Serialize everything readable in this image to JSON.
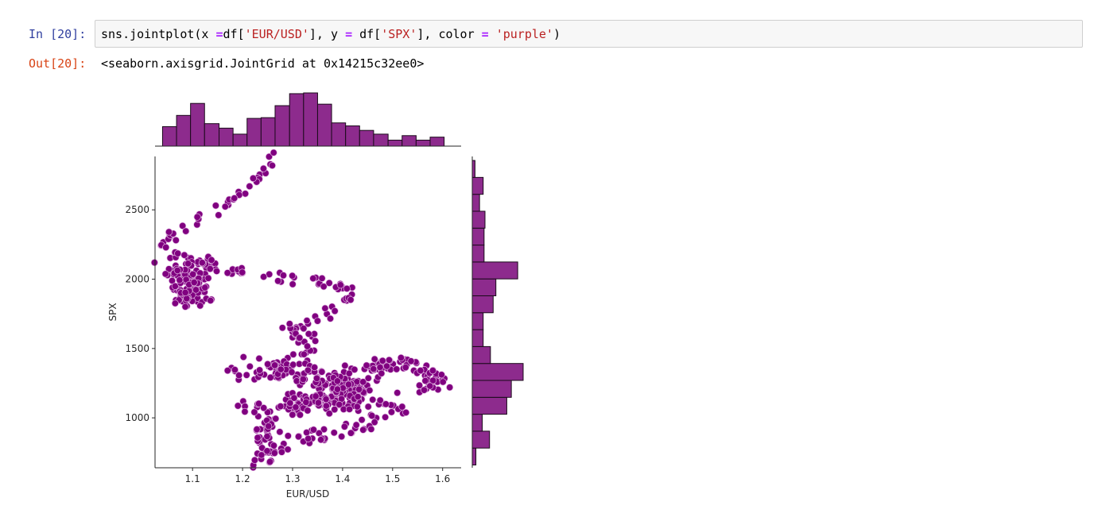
{
  "cell": {
    "in_prompt": "In [20]:",
    "out_prompt": "Out[20]:",
    "code": {
      "fn": "sns.jointplot(x ",
      "eq1": "=",
      "x_df": "df[",
      "x_key": "'EUR/USD'",
      "x_close": "], y ",
      "eq2": "=",
      "y_df": " df[",
      "y_key": "'SPX'",
      "y_close": "], color ",
      "eq3": "=",
      "color_sp": " ",
      "color_val": "'purple'",
      "end": ")"
    },
    "output": "<seaborn.axisgrid.JointGrid at 0x14215c32ee0>"
  },
  "colors": {
    "purple": "#800080",
    "bar_fill": "#8d2b8d",
    "bar_edge": "#1a0a1a",
    "point_edge": "#e0b6e0",
    "prompt_in": "#303f9f",
    "prompt_out": "#d84315"
  },
  "chart_data": {
    "type": "scatter",
    "kind": "jointplot",
    "xlabel": "EUR/USD",
    "ylabel": "SPX",
    "xlim": [
      1.025,
      1.637
    ],
    "ylim": [
      640,
      2885
    ],
    "xticks": [
      1.1,
      1.2,
      1.3,
      1.4,
      1.5,
      1.6
    ],
    "xtick_labels": [
      "1.1",
      "1.2",
      "1.3",
      "1.4",
      "1.5",
      "1.6"
    ],
    "yticks": [
      1000,
      1500,
      2000,
      2500
    ],
    "ytick_labels": [
      "1000",
      "1500",
      "2000",
      "2500"
    ],
    "grid": false,
    "marginal_x": {
      "bin_edges": [
        1.04,
        1.068,
        1.096,
        1.124,
        1.153,
        1.181,
        1.209,
        1.237,
        1.265,
        1.294,
        1.322,
        1.35,
        1.378,
        1.406,
        1.434,
        1.462,
        1.491,
        1.519,
        1.547,
        1.575,
        1.603
      ],
      "counts": [
        26,
        41,
        57,
        30,
        24,
        16,
        37,
        38,
        54,
        70,
        71,
        56,
        31,
        27,
        21,
        16,
        8,
        14,
        8,
        12
      ]
    },
    "marginal_y": {
      "bin_edges": [
        660,
        782,
        904,
        1026,
        1148,
        1270,
        1392,
        1514,
        1636,
        1758,
        1880,
        2002,
        2124,
        2246,
        2368,
        2490,
        2612,
        2734,
        2856
      ],
      "counts": [
        4,
        19,
        11,
        38,
        43,
        56,
        20,
        12,
        12,
        23,
        26,
        50,
        13,
        13,
        14,
        8,
        12,
        3
      ]
    },
    "scatter_paths": [
      {
        "n": 70,
        "spread": [
          0.004,
          25
        ],
        "pts": [
          [
            1.26,
            2860
          ],
          [
            1.24,
            2780
          ],
          [
            1.22,
            2700
          ],
          [
            1.2,
            2630
          ],
          [
            1.17,
            2560
          ],
          [
            1.15,
            2500
          ],
          [
            1.12,
            2440
          ],
          [
            1.09,
            2380
          ],
          [
            1.06,
            2320
          ],
          [
            1.04,
            2260
          ],
          [
            1.06,
            2200
          ],
          [
            1.1,
            2150
          ],
          [
            1.14,
            2110
          ],
          [
            1.12,
            2060
          ]
        ]
      },
      {
        "n": 110,
        "spread": [
          0.012,
          45
        ],
        "pts": [
          [
            1.05,
            2080
          ],
          [
            1.08,
            2030
          ],
          [
            1.1,
            1990
          ],
          [
            1.12,
            1950
          ],
          [
            1.1,
            1900
          ],
          [
            1.08,
            1860
          ],
          [
            1.12,
            1840
          ]
        ]
      },
      {
        "n": 55,
        "spread": [
          0.008,
          20
        ],
        "pts": [
          [
            1.12,
            2090
          ],
          [
            1.17,
            2060
          ],
          [
            1.22,
            2060
          ],
          [
            1.27,
            2010
          ],
          [
            1.31,
            1990
          ],
          [
            1.36,
            1980
          ],
          [
            1.39,
            1960
          ],
          [
            1.42,
            1870
          ],
          [
            1.39,
            1800
          ],
          [
            1.36,
            1720
          ],
          [
            1.33,
            1660
          ]
        ]
      },
      {
        "n": 35,
        "spread": [
          0.012,
          25
        ],
        "pts": [
          [
            1.29,
            1650
          ],
          [
            1.31,
            1580
          ],
          [
            1.35,
            1530
          ],
          [
            1.31,
            1450
          ],
          [
            1.28,
            1390
          ]
        ]
      },
      {
        "n": 240,
        "spread": [
          0.022,
          45
        ],
        "pts": [
          [
            1.2,
            1340
          ],
          [
            1.27,
            1320
          ],
          [
            1.34,
            1300
          ],
          [
            1.4,
            1260
          ],
          [
            1.44,
            1200
          ],
          [
            1.4,
            1150
          ],
          [
            1.34,
            1120
          ],
          [
            1.28,
            1080
          ]
        ]
      },
      {
        "n": 75,
        "spread": [
          0.012,
          38
        ],
        "pts": [
          [
            1.45,
            1330
          ],
          [
            1.48,
            1360
          ],
          [
            1.5,
            1390
          ],
          [
            1.54,
            1380
          ],
          [
            1.57,
            1330
          ],
          [
            1.6,
            1270
          ],
          [
            1.55,
            1240
          ]
        ]
      },
      {
        "n": 60,
        "spread": [
          0.012,
          30
        ],
        "pts": [
          [
            1.2,
            1090
          ],
          [
            1.24,
            1050
          ],
          [
            1.26,
            1000
          ],
          [
            1.25,
            940
          ],
          [
            1.24,
            880
          ],
          [
            1.25,
            820
          ],
          [
            1.24,
            760
          ],
          [
            1.23,
            690
          ],
          [
            1.27,
            720
          ],
          [
            1.29,
            790
          ]
        ]
      },
      {
        "n": 55,
        "spread": [
          0.012,
          30
        ],
        "pts": [
          [
            1.27,
            870
          ],
          [
            1.32,
            850
          ],
          [
            1.36,
            880
          ],
          [
            1.4,
            920
          ],
          [
            1.44,
            940
          ],
          [
            1.48,
            990
          ],
          [
            1.52,
            1060
          ],
          [
            1.5,
            1100
          ],
          [
            1.44,
            1100
          ],
          [
            1.38,
            1110
          ]
        ]
      }
    ]
  }
}
